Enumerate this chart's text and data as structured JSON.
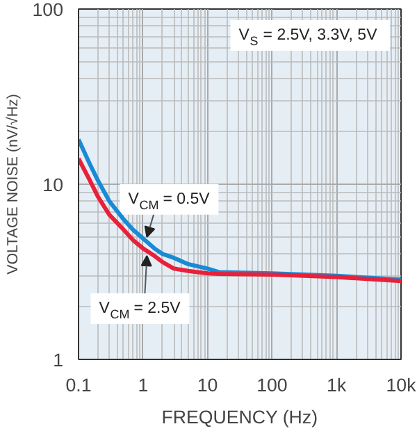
{
  "chart_data": {
    "type": "line",
    "xlabel": "FREQUENCY (Hz)",
    "ylabel": "VOLTAGE NOISE (nV/√Hz)",
    "x": [
      0.1,
      0.15,
      0.2,
      0.3,
      0.5,
      0.7,
      1,
      1.5,
      2,
      3,
      5,
      10,
      15,
      100,
      1000,
      10000
    ],
    "series": [
      {
        "color": "#1a8ad4",
        "values": [
          18,
          13,
          10.5,
          8,
          6.3,
          5.5,
          4.9,
          4.3,
          4.0,
          3.8,
          3.5,
          3.3,
          3.15,
          3.1,
          3.0,
          2.85
        ]
      },
      {
        "color": "#e8213a",
        "values": [
          14,
          10.5,
          8.5,
          6.7,
          5.5,
          4.8,
          4.3,
          3.9,
          3.6,
          3.3,
          3.2,
          3.1,
          3.08,
          3.05,
          2.95,
          2.8
        ]
      }
    ],
    "log": "xy",
    "xlim": [
      0.1,
      10000
    ],
    "ylim": [
      1,
      100
    ],
    "xticks": [
      {
        "value": 0.1,
        "label": "0.1"
      },
      1,
      10,
      100,
      {
        "value": 1000,
        "label": "1k"
      },
      {
        "value": 10000,
        "label": "10k"
      }
    ],
    "yticks": [
      1,
      10,
      100
    ],
    "grid": true,
    "line_style": "solid",
    "marker": "none",
    "annotations": [
      "V$_{S}$ = 2.5V, 3.3V, 5V",
      {
        "text": "V$_{CM}$ = 0.5V",
        "x": 1.15,
        "y": 5.0
      },
      {
        "text": "V$_{CM}$ = 2.5V",
        "x": 1.15,
        "y": 3.9
      }
    ]
  }
}
